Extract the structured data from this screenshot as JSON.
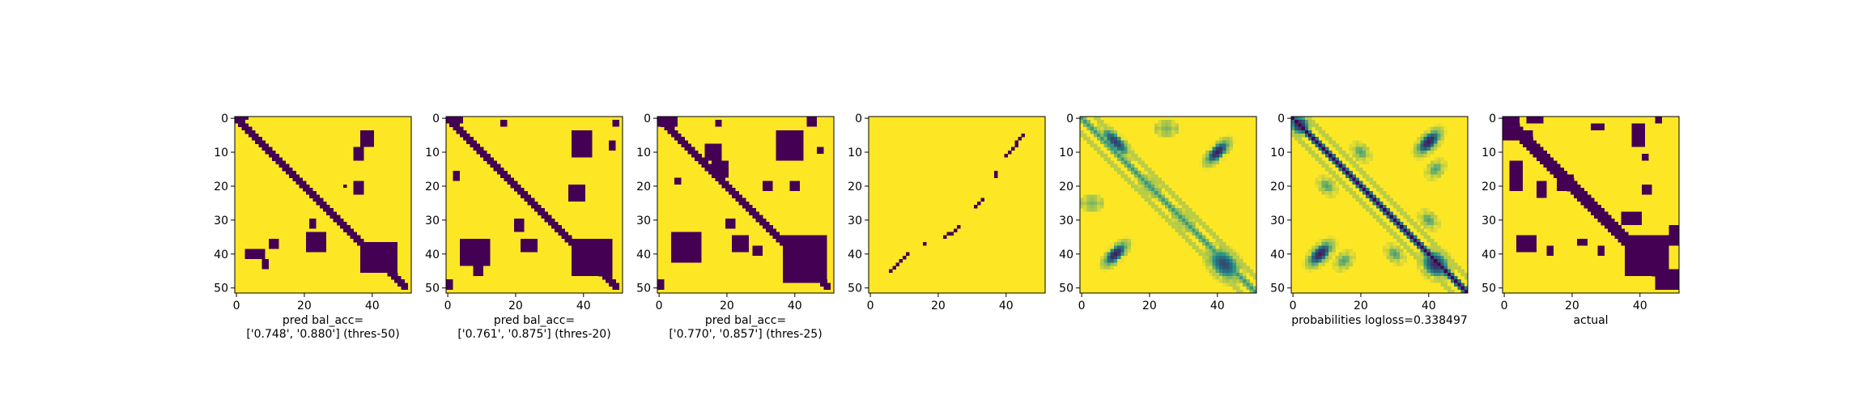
{
  "chart_data": [
    {
      "type": "heatmap",
      "style": "binary",
      "xticks": [
        0,
        20,
        40
      ],
      "yticks": [
        0,
        10,
        20,
        30,
        40,
        50
      ],
      "xlim": [
        -0.5,
        51.5
      ],
      "ylim": [
        51.5,
        -0.5
      ],
      "grid": false,
      "caption": [
        "pred bal_acc=",
        "['0.748', '0.880'] (thres-50)"
      ],
      "colors": {
        "low": "#440154",
        "high": "#fde725"
      },
      "blobs": [
        {
          "r0": 0,
          "r1": 0,
          "c0": 0,
          "c1": 3
        },
        {
          "r0": 4,
          "r1": 8,
          "c0": 37,
          "c1": 40
        },
        {
          "r0": 9,
          "r1": 12,
          "c0": 35,
          "c1": 37
        },
        {
          "r0": 20,
          "r1": 20,
          "c0": 32,
          "c1": 32
        },
        {
          "r0": 19,
          "r1": 22,
          "c0": 35,
          "c1": 37
        },
        {
          "r0": 36,
          "r1": 38,
          "c0": 10,
          "c1": 12
        },
        {
          "r0": 39,
          "r1": 41,
          "c0": 3,
          "c1": 8
        },
        {
          "r0": 42,
          "r1": 44,
          "c0": 8,
          "c1": 9
        },
        {
          "r0": 30,
          "r1": 32,
          "c0": 22,
          "c1": 23
        },
        {
          "r0": 34,
          "r1": 39,
          "c0": 21,
          "c1": 26
        },
        {
          "r0": 37,
          "r1": 45,
          "c0": 37,
          "c1": 47
        }
      ]
    },
    {
      "type": "heatmap",
      "style": "binary",
      "xticks": [
        0,
        20,
        40
      ],
      "yticks": [
        0,
        10,
        20,
        30,
        40,
        50
      ],
      "xlim": [
        -0.5,
        51.5
      ],
      "ylim": [
        51.5,
        -0.5
      ],
      "grid": false,
      "caption": [
        "pred bal_acc=",
        "['0.761', '0.875'] (thres-20)"
      ],
      "colors": {
        "low": "#440154",
        "high": "#fde725"
      },
      "blobs": [
        {
          "r0": 0,
          "r1": 1,
          "c0": 0,
          "c1": 4
        },
        {
          "r0": 1,
          "r1": 2,
          "c0": 16,
          "c1": 17
        },
        {
          "r0": 1,
          "r1": 2,
          "c0": 49,
          "c1": 50
        },
        {
          "r0": 4,
          "r1": 11,
          "c0": 37,
          "c1": 42
        },
        {
          "r0": 7,
          "r1": 9,
          "c0": 48,
          "c1": 49
        },
        {
          "r0": 16,
          "r1": 18,
          "c0": 2,
          "c1": 3
        },
        {
          "r0": 20,
          "r1": 24,
          "c0": 36,
          "c1": 40
        },
        {
          "r0": 36,
          "r1": 43,
          "c0": 4,
          "c1": 12
        },
        {
          "r0": 42,
          "r1": 46,
          "c0": 8,
          "c1": 10
        },
        {
          "r0": 30,
          "r1": 33,
          "c0": 20,
          "c1": 22
        },
        {
          "r0": 36,
          "r1": 39,
          "c0": 22,
          "c1": 26
        },
        {
          "r0": 36,
          "r1": 46,
          "c0": 37,
          "c1": 48
        },
        {
          "r0": 48,
          "r1": 50,
          "c0": 0,
          "c1": 1
        }
      ]
    },
    {
      "type": "heatmap",
      "style": "binary",
      "xticks": [
        0,
        20,
        40
      ],
      "yticks": [
        0,
        10,
        20,
        30,
        40,
        50
      ],
      "xlim": [
        -0.5,
        51.5
      ],
      "ylim": [
        51.5,
        -0.5
      ],
      "grid": false,
      "caption": [
        "pred bal_acc=",
        "['0.770', '0.857'] (thres-25)"
      ],
      "colors": {
        "low": "#440154",
        "high": "#fde725"
      },
      "blobs": [
        {
          "r0": 0,
          "r1": 2,
          "c0": 0,
          "c1": 5
        },
        {
          "r0": 1,
          "r1": 2,
          "c0": 17,
          "c1": 18
        },
        {
          "r0": 0,
          "r1": 2,
          "c0": 44,
          "c1": 46
        },
        {
          "r0": 4,
          "r1": 12,
          "c0": 35,
          "c1": 42
        },
        {
          "r0": 9,
          "r1": 10,
          "c0": 47,
          "c1": 48
        },
        {
          "r0": 8,
          "r1": 12,
          "c0": 14,
          "c1": 18
        },
        {
          "r0": 13,
          "r1": 17,
          "c0": 16,
          "c1": 20
        },
        {
          "r0": 18,
          "r1": 19,
          "c0": 5,
          "c1": 6
        },
        {
          "r0": 19,
          "r1": 21,
          "c0": 31,
          "c1": 33
        },
        {
          "r0": 19,
          "r1": 21,
          "c0": 39,
          "c1": 41
        },
        {
          "r0": 34,
          "r1": 42,
          "c0": 4,
          "c1": 12
        },
        {
          "r0": 30,
          "r1": 32,
          "c0": 20,
          "c1": 22
        },
        {
          "r0": 35,
          "r1": 39,
          "c0": 22,
          "c1": 26
        },
        {
          "r0": 35,
          "r1": 48,
          "c0": 37,
          "c1": 49
        },
        {
          "r0": 48,
          "r1": 50,
          "c0": 0,
          "c1": 1
        },
        {
          "r0": 38,
          "r1": 40,
          "c0": 28,
          "c1": 30
        }
      ]
    },
    {
      "type": "heatmap",
      "style": "sparse",
      "xticks": [
        0,
        20,
        40
      ],
      "yticks": [
        0,
        10,
        20,
        30,
        40,
        50
      ],
      "xlim": [
        -0.5,
        51.5
      ],
      "ylim": [
        51.5,
        -0.5
      ],
      "grid": false,
      "caption": [],
      "colors": {
        "low": "#440154",
        "high": "#fde725"
      },
      "segments": [
        {
          "r0": 45,
          "c0": 6,
          "r1": 40,
          "c1": 11
        },
        {
          "r0": 37,
          "c0": 16,
          "r1": 37,
          "c1": 16
        },
        {
          "r0": 35,
          "c0": 22,
          "r1": 32,
          "c1": 26
        },
        {
          "r0": 26,
          "c0": 31,
          "r1": 24,
          "c1": 33
        },
        {
          "r0": 17,
          "c0": 37,
          "r1": 16,
          "c1": 37
        },
        {
          "r0": 11,
          "c0": 40,
          "r1": 5,
          "c1": 45
        }
      ]
    },
    {
      "type": "heatmap",
      "style": "prob",
      "xticks": [
        0,
        20,
        40
      ],
      "yticks": [
        0,
        10,
        20,
        30,
        40,
        50
      ],
      "xlim": [
        -0.5,
        51.5
      ],
      "ylim": [
        51.5,
        -0.5
      ],
      "grid": false,
      "caption": [],
      "colors": {
        "low": "#440154",
        "mid": "#21918c",
        "high": "#fde725"
      },
      "diag_strength": 0.45,
      "features": [
        {
          "r": 7,
          "c": 10,
          "rx": 6,
          "ry": 2.2,
          "angle": 45,
          "v": 0.2
        },
        {
          "r": 10,
          "c": 40,
          "rx": 5,
          "ry": 2.2,
          "angle": -45,
          "v": 0.1
        },
        {
          "r": 40,
          "c": 10,
          "rx": 5,
          "ry": 2.2,
          "angle": -45,
          "v": 0.1
        },
        {
          "r": 43,
          "c": 42,
          "rx": 6,
          "ry": 4,
          "angle": 45,
          "v": 0.25
        },
        {
          "r": 20,
          "c": 20,
          "rx": 4,
          "ry": 2,
          "angle": 45,
          "v": 0.6
        },
        {
          "r": 30,
          "c": 30,
          "rx": 4,
          "ry": 2,
          "angle": 45,
          "v": 0.65
        },
        {
          "r": 25,
          "c": 3,
          "rx": 3,
          "ry": 2,
          "angle": 0,
          "v": 0.7
        },
        {
          "r": 3,
          "c": 25,
          "rx": 3,
          "ry": 2,
          "angle": 0,
          "v": 0.7
        }
      ]
    },
    {
      "type": "heatmap",
      "style": "prob",
      "xticks": [
        0,
        20,
        40
      ],
      "yticks": [
        0,
        10,
        20,
        30,
        40,
        50
      ],
      "xlim": [
        -0.5,
        51.5
      ],
      "ylim": [
        51.5,
        -0.5
      ],
      "grid": false,
      "caption": [
        "probabilities logloss=0.338497"
      ],
      "colors": {
        "low": "#440154",
        "mid": "#21918c",
        "high": "#fde725"
      },
      "diag_strength": 1.0,
      "features": [
        {
          "r": 2,
          "c": 2,
          "rx": 3,
          "ry": 3,
          "angle": 0,
          "v": 0.1
        },
        {
          "r": 7,
          "c": 40,
          "rx": 5,
          "ry": 2.5,
          "angle": -45,
          "v": 0.1
        },
        {
          "r": 40,
          "c": 8,
          "rx": 5,
          "ry": 2.5,
          "angle": -45,
          "v": 0.1
        },
        {
          "r": 43,
          "c": 42,
          "rx": 5,
          "ry": 4,
          "angle": 45,
          "v": 0.15
        },
        {
          "r": 10,
          "c": 20,
          "rx": 3,
          "ry": 2,
          "angle": 45,
          "v": 0.6
        },
        {
          "r": 20,
          "c": 10,
          "rx": 3,
          "ry": 2,
          "angle": 45,
          "v": 0.6
        },
        {
          "r": 30,
          "c": 40,
          "rx": 3,
          "ry": 2,
          "angle": 45,
          "v": 0.6
        },
        {
          "r": 40,
          "c": 30,
          "rx": 3,
          "ry": 2,
          "angle": 45,
          "v": 0.6
        },
        {
          "r": 15,
          "c": 42,
          "rx": 3,
          "ry": 2,
          "angle": -45,
          "v": 0.6
        },
        {
          "r": 42,
          "c": 15,
          "rx": 3,
          "ry": 2,
          "angle": -45,
          "v": 0.6
        }
      ]
    },
    {
      "type": "heatmap",
      "style": "binary",
      "xticks": [
        0,
        20,
        40
      ],
      "yticks": [
        0,
        10,
        20,
        30,
        40,
        50
      ],
      "xlim": [
        -0.5,
        51.5
      ],
      "ylim": [
        51.5,
        -0.5
      ],
      "grid": false,
      "caption": [
        "actual"
      ],
      "colors": {
        "low": "#440154",
        "high": "#fde725"
      },
      "diag_width": 2,
      "blobs": [
        {
          "r0": 0,
          "r1": 6,
          "c0": 0,
          "c1": 4
        },
        {
          "r0": 0,
          "r1": 1,
          "c0": 7,
          "c1": 11
        },
        {
          "r0": 0,
          "r1": 1,
          "c0": 45,
          "c1": 46
        },
        {
          "r0": 2,
          "r1": 3,
          "c0": 26,
          "c1": 29
        },
        {
          "r0": 2,
          "r1": 8,
          "c0": 38,
          "c1": 41
        },
        {
          "r0": 4,
          "r1": 7,
          "c0": 6,
          "c1": 8
        },
        {
          "r0": 11,
          "r1": 12,
          "c0": 41,
          "c1": 42
        },
        {
          "r0": 13,
          "r1": 21,
          "c0": 2,
          "c1": 5
        },
        {
          "r0": 19,
          "r1": 23,
          "c0": 10,
          "c1": 12
        },
        {
          "r0": 20,
          "r1": 22,
          "c0": 41,
          "c1": 43
        },
        {
          "r0": 17,
          "r1": 21,
          "c0": 16,
          "c1": 20
        },
        {
          "r0": 28,
          "r1": 31,
          "c0": 35,
          "c1": 40
        },
        {
          "r0": 35,
          "r1": 39,
          "c0": 4,
          "c1": 9
        },
        {
          "r0": 36,
          "r1": 37,
          "c0": 22,
          "c1": 24
        },
        {
          "r0": 38,
          "r1": 40,
          "c0": 13,
          "c1": 14
        },
        {
          "r0": 38,
          "r1": 40,
          "c0": 28,
          "c1": 29
        },
        {
          "r0": 35,
          "r1": 46,
          "c0": 36,
          "c1": 48
        },
        {
          "r0": 32,
          "r1": 37,
          "c0": 49,
          "c1": 51
        },
        {
          "r0": 45,
          "r1": 50,
          "c0": 45,
          "c1": 51
        }
      ]
    }
  ]
}
